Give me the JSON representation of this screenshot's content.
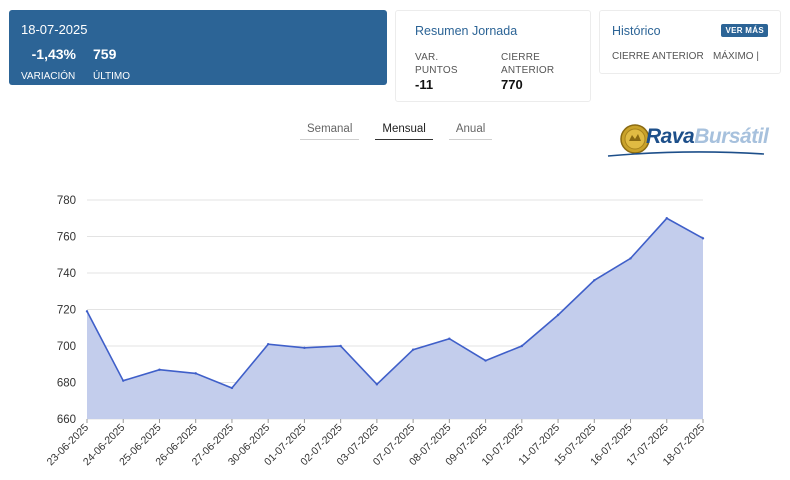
{
  "quote": {
    "date": "18-07-2025",
    "variation": "-1,43%",
    "variation_label": "VARIACIÓN",
    "last": "759",
    "last_label": "ÚLTIMO"
  },
  "summary": {
    "title": "Resumen Jornada",
    "points_label_1": "VAR.",
    "points_label_2": "PUNTOS",
    "points_value": "-11",
    "close_label_1": "CIERRE",
    "close_label_2": "ANTERIOR",
    "close_value": "770"
  },
  "history": {
    "title": "Histórico",
    "button": "VER MÁS",
    "prev_close_label": "CIERRE ANTERIOR",
    "max_label": "MÁXIMO |"
  },
  "tabs": [
    "Semanal",
    "Mensual",
    "Anual"
  ],
  "active_tab": "Mensual",
  "logo": {
    "brand": "Rava",
    "sub": "Bursátil"
  },
  "colors": {
    "primary": "#2c6496",
    "line": "#3f5fc9",
    "fill": "#c3cdec"
  },
  "chart_data": {
    "type": "area",
    "title": "",
    "xlabel": "",
    "ylabel": "",
    "ylim": [
      660,
      780
    ],
    "yticks": [
      660,
      680,
      700,
      720,
      740,
      760,
      780
    ],
    "categories": [
      "23-06-2025",
      "24-06-2025",
      "25-06-2025",
      "26-06-2025",
      "27-06-2025",
      "30-06-2025",
      "01-07-2025",
      "02-07-2025",
      "03-07-2025",
      "07-07-2025",
      "08-07-2025",
      "09-07-2025",
      "10-07-2025",
      "11-07-2025",
      "15-07-2025",
      "16-07-2025",
      "17-07-2025",
      "18-07-2025"
    ],
    "values": [
      719,
      681,
      687,
      685,
      677,
      701,
      699,
      700,
      679,
      698,
      704,
      692,
      700,
      717,
      736,
      748,
      770,
      759
    ]
  }
}
